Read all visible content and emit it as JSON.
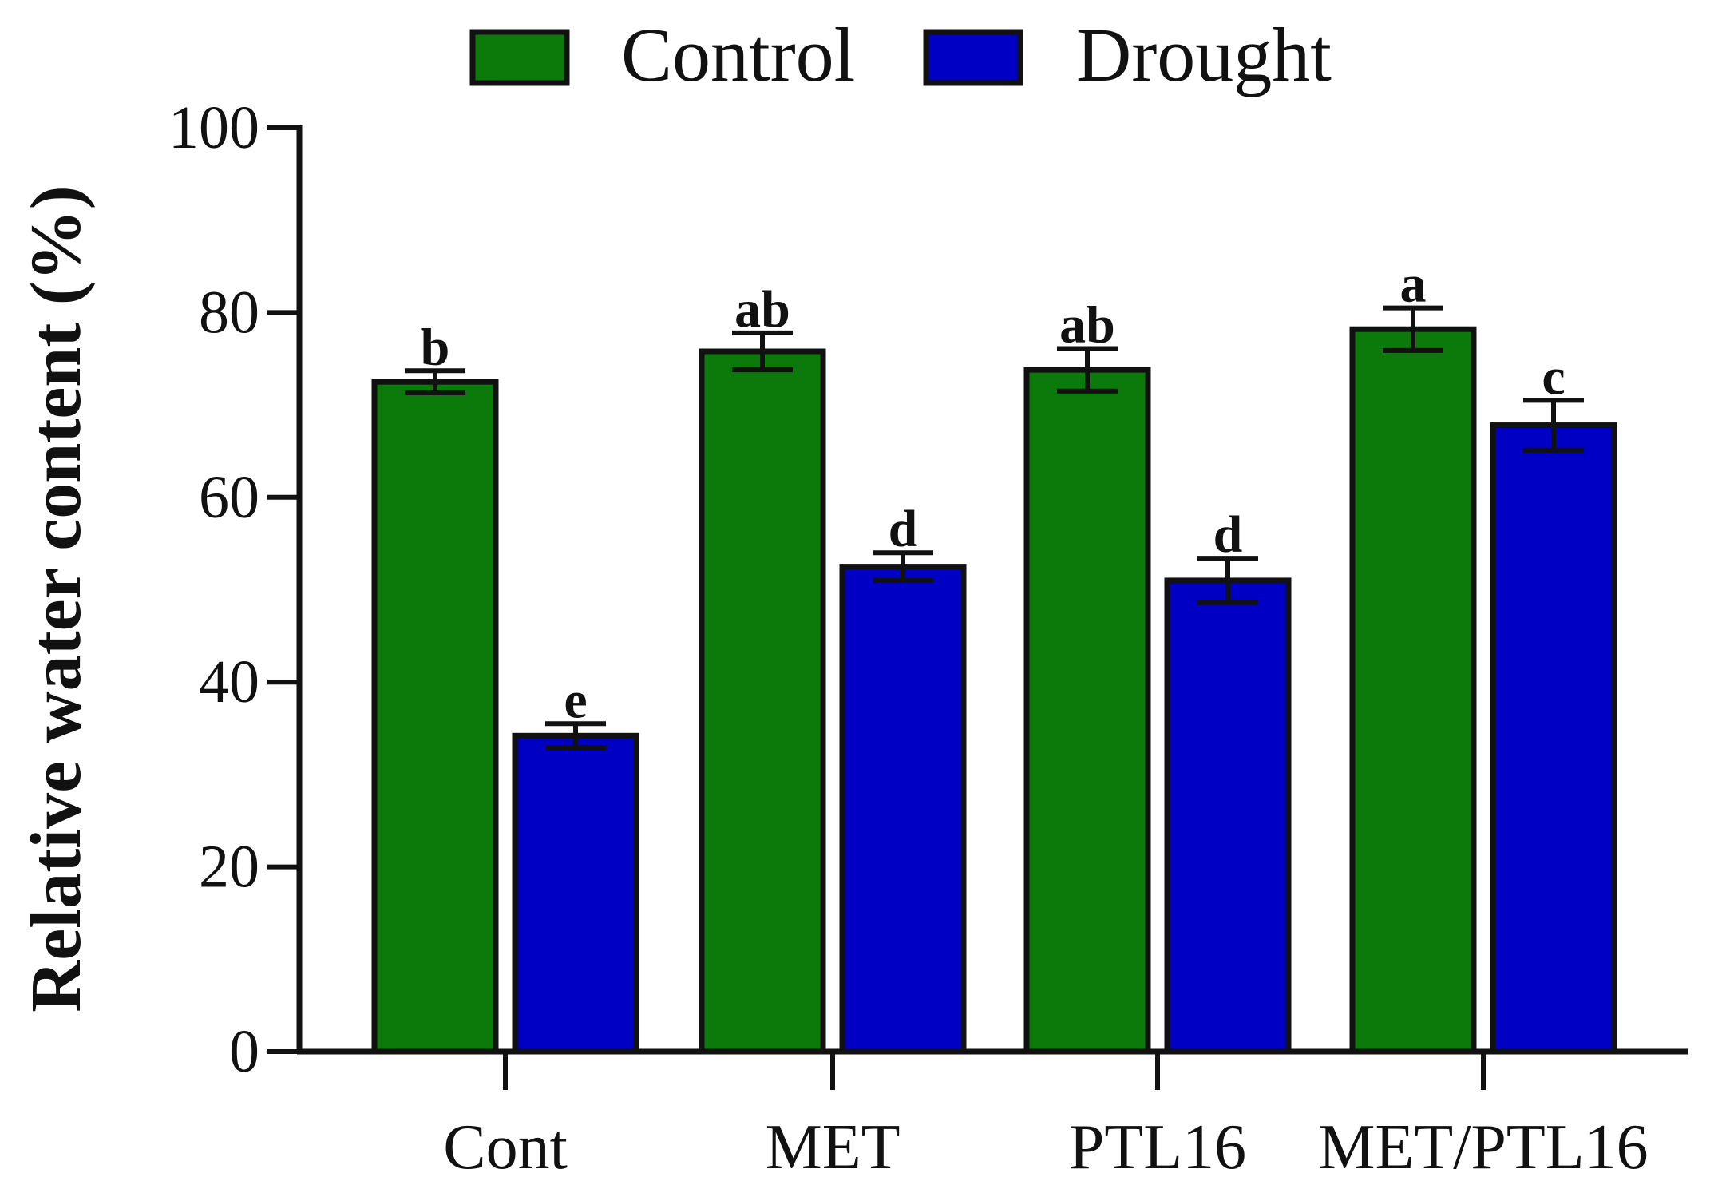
{
  "chart_data": {
    "type": "bar",
    "title": "",
    "xlabel": "",
    "ylabel": "Relative water content (%)",
    "ylim": [
      0,
      100
    ],
    "yticks": [
      0,
      20,
      40,
      60,
      80,
      100
    ],
    "categories": [
      "Cont",
      "MET",
      "PTL16",
      "MET/PTL16"
    ],
    "series": [
      {
        "name": "Control",
        "color": "#0b7a0b",
        "values": [
          72.5,
          75.8,
          73.8,
          78.2
        ],
        "errors": [
          1.2,
          2.0,
          2.3,
          2.3
        ],
        "letters": [
          "b",
          "ab",
          "ab",
          "a"
        ]
      },
      {
        "name": "Drought",
        "color": "#0000c4",
        "values": [
          34.2,
          52.5,
          51.0,
          67.8
        ],
        "errors": [
          1.3,
          1.5,
          2.4,
          2.7
        ],
        "letters": [
          "e",
          "d",
          "d",
          "c"
        ]
      }
    ],
    "legend": {
      "position": "top-center"
    },
    "grid": false
  }
}
